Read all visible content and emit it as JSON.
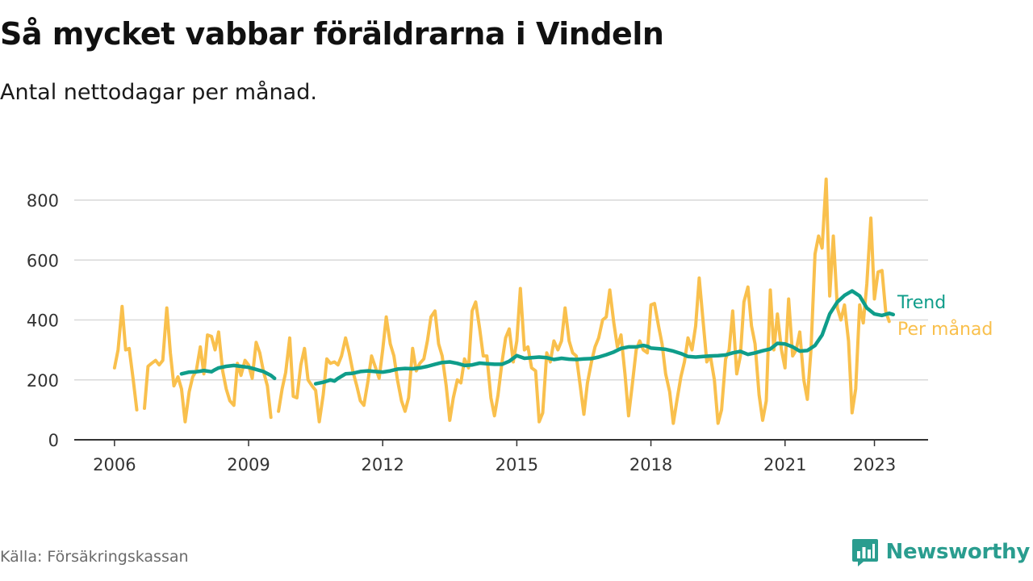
{
  "title": "Så mycket vabbar föräldrarna i Vindeln",
  "subtitle": "Antal nettodagar per månad.",
  "source": "Källa: Försäkringskassan",
  "brand": {
    "name": "Newsworthy",
    "icon": "bar-chart-icon",
    "color": "#2a9d8f"
  },
  "chart_data": {
    "type": "line",
    "xlim": [
      2005.1,
      2024.2
    ],
    "ylim": [
      0,
      850
    ],
    "x_ticks": [
      2006,
      2009,
      2012,
      2015,
      2018,
      2021,
      2023
    ],
    "y_ticks": [
      0,
      200,
      400,
      600,
      800
    ],
    "grid": true,
    "legend": "right",
    "series": [
      {
        "name": "Per månad",
        "color": "#f9c04d",
        "points": [
          [
            2006.0,
            240
          ],
          [
            2006.08,
            300
          ],
          [
            2006.17,
            445
          ],
          [
            2006.25,
            300
          ],
          [
            2006.33,
            305
          ],
          [
            2006.42,
            200
          ],
          [
            2006.5,
            100
          ],
          [
            2006.58,
            null
          ],
          [
            2006.67,
            105
          ],
          [
            2006.75,
            245
          ],
          [
            2006.83,
            255
          ],
          [
            2006.92,
            265
          ],
          [
            2007.0,
            250
          ],
          [
            2007.08,
            265
          ],
          [
            2007.17,
            440
          ],
          [
            2007.25,
            290
          ],
          [
            2007.33,
            180
          ],
          [
            2007.42,
            210
          ],
          [
            2007.5,
            170
          ],
          [
            2007.58,
            60
          ],
          [
            2007.67,
            160
          ],
          [
            2007.75,
            210
          ],
          [
            2007.83,
            230
          ],
          [
            2007.92,
            310
          ],
          [
            2008.0,
            220
          ],
          [
            2008.08,
            350
          ],
          [
            2008.17,
            345
          ],
          [
            2008.25,
            300
          ],
          [
            2008.33,
            360
          ],
          [
            2008.42,
            230
          ],
          [
            2008.5,
            170
          ],
          [
            2008.58,
            130
          ],
          [
            2008.67,
            115
          ],
          [
            2008.75,
            255
          ],
          [
            2008.83,
            215
          ],
          [
            2008.92,
            265
          ],
          [
            2009.0,
            250
          ],
          [
            2009.08,
            205
          ],
          [
            2009.17,
            325
          ],
          [
            2009.25,
            290
          ],
          [
            2009.33,
            230
          ],
          [
            2009.42,
            180
          ],
          [
            2009.5,
            75
          ],
          [
            2009.58,
            null
          ],
          [
            2009.67,
            95
          ],
          [
            2009.75,
            170
          ],
          [
            2009.83,
            225
          ],
          [
            2009.92,
            340
          ],
          [
            2010.0,
            145
          ],
          [
            2010.08,
            140
          ],
          [
            2010.17,
            250
          ],
          [
            2010.25,
            305
          ],
          [
            2010.33,
            200
          ],
          [
            2010.42,
            180
          ],
          [
            2010.5,
            165
          ],
          [
            2010.58,
            60
          ],
          [
            2010.67,
            150
          ],
          [
            2010.75,
            270
          ],
          [
            2010.83,
            255
          ],
          [
            2010.92,
            260
          ],
          [
            2011.0,
            250
          ],
          [
            2011.08,
            280
          ],
          [
            2011.17,
            340
          ],
          [
            2011.25,
            290
          ],
          [
            2011.33,
            230
          ],
          [
            2011.42,
            180
          ],
          [
            2011.5,
            130
          ],
          [
            2011.58,
            115
          ],
          [
            2011.67,
            195
          ],
          [
            2011.75,
            280
          ],
          [
            2011.83,
            245
          ],
          [
            2011.92,
            205
          ],
          [
            2012.0,
            300
          ],
          [
            2012.08,
            410
          ],
          [
            2012.17,
            320
          ],
          [
            2012.25,
            280
          ],
          [
            2012.33,
            200
          ],
          [
            2012.42,
            130
          ],
          [
            2012.5,
            95
          ],
          [
            2012.58,
            140
          ],
          [
            2012.67,
            305
          ],
          [
            2012.75,
            230
          ],
          [
            2012.83,
            255
          ],
          [
            2012.92,
            270
          ],
          [
            2013.0,
            330
          ],
          [
            2013.08,
            410
          ],
          [
            2013.17,
            430
          ],
          [
            2013.25,
            320
          ],
          [
            2013.33,
            280
          ],
          [
            2013.42,
            180
          ],
          [
            2013.5,
            65
          ],
          [
            2013.58,
            140
          ],
          [
            2013.67,
            200
          ],
          [
            2013.75,
            190
          ],
          [
            2013.83,
            270
          ],
          [
            2013.92,
            240
          ],
          [
            2014.0,
            430
          ],
          [
            2014.08,
            460
          ],
          [
            2014.17,
            370
          ],
          [
            2014.25,
            280
          ],
          [
            2014.33,
            280
          ],
          [
            2014.42,
            140
          ],
          [
            2014.5,
            80
          ],
          [
            2014.58,
            150
          ],
          [
            2014.67,
            260
          ],
          [
            2014.75,
            340
          ],
          [
            2014.83,
            370
          ],
          [
            2014.92,
            260
          ],
          [
            2015.0,
            330
          ],
          [
            2015.08,
            505
          ],
          [
            2015.17,
            300
          ],
          [
            2015.25,
            310
          ],
          [
            2015.33,
            240
          ],
          [
            2015.42,
            230
          ],
          [
            2015.5,
            60
          ],
          [
            2015.58,
            90
          ],
          [
            2015.67,
            290
          ],
          [
            2015.75,
            260
          ],
          [
            2015.83,
            330
          ],
          [
            2015.92,
            300
          ],
          [
            2016.0,
            330
          ],
          [
            2016.08,
            440
          ],
          [
            2016.17,
            330
          ],
          [
            2016.25,
            290
          ],
          [
            2016.33,
            280
          ],
          [
            2016.42,
            180
          ],
          [
            2016.5,
            85
          ],
          [
            2016.58,
            190
          ],
          [
            2016.67,
            260
          ],
          [
            2016.75,
            310
          ],
          [
            2016.83,
            340
          ],
          [
            2016.92,
            400
          ],
          [
            2017.0,
            410
          ],
          [
            2017.08,
            500
          ],
          [
            2017.17,
            390
          ],
          [
            2017.25,
            310
          ],
          [
            2017.33,
            350
          ],
          [
            2017.42,
            220
          ],
          [
            2017.5,
            80
          ],
          [
            2017.58,
            180
          ],
          [
            2017.67,
            300
          ],
          [
            2017.75,
            330
          ],
          [
            2017.83,
            300
          ],
          [
            2017.92,
            290
          ],
          [
            2018.0,
            450
          ],
          [
            2018.08,
            455
          ],
          [
            2018.17,
            380
          ],
          [
            2018.25,
            320
          ],
          [
            2018.33,
            220
          ],
          [
            2018.42,
            160
          ],
          [
            2018.5,
            55
          ],
          [
            2018.58,
            130
          ],
          [
            2018.67,
            210
          ],
          [
            2018.75,
            260
          ],
          [
            2018.83,
            340
          ],
          [
            2018.92,
            300
          ],
          [
            2019.0,
            380
          ],
          [
            2019.08,
            540
          ],
          [
            2019.17,
            390
          ],
          [
            2019.25,
            260
          ],
          [
            2019.33,
            280
          ],
          [
            2019.42,
            200
          ],
          [
            2019.5,
            55
          ],
          [
            2019.58,
            100
          ],
          [
            2019.67,
            270
          ],
          [
            2019.75,
            300
          ],
          [
            2019.83,
            430
          ],
          [
            2019.92,
            220
          ],
          [
            2020.0,
            280
          ],
          [
            2020.08,
            460
          ],
          [
            2020.17,
            510
          ],
          [
            2020.25,
            380
          ],
          [
            2020.33,
            320
          ],
          [
            2020.42,
            150
          ],
          [
            2020.5,
            65
          ],
          [
            2020.58,
            130
          ],
          [
            2020.67,
            500
          ],
          [
            2020.75,
            300
          ],
          [
            2020.83,
            420
          ],
          [
            2020.92,
            300
          ],
          [
            2021.0,
            240
          ],
          [
            2021.08,
            470
          ],
          [
            2021.17,
            280
          ],
          [
            2021.25,
            300
          ],
          [
            2021.33,
            360
          ],
          [
            2021.42,
            200
          ],
          [
            2021.5,
            135
          ],
          [
            2021.58,
            300
          ],
          [
            2021.67,
            620
          ],
          [
            2021.75,
            680
          ],
          [
            2021.83,
            640
          ],
          [
            2021.92,
            870
          ],
          [
            2022.0,
            480
          ],
          [
            2022.08,
            680
          ],
          [
            2022.17,
            440
          ],
          [
            2022.25,
            400
          ],
          [
            2022.33,
            450
          ],
          [
            2022.42,
            330
          ],
          [
            2022.5,
            90
          ],
          [
            2022.58,
            170
          ],
          [
            2022.67,
            450
          ],
          [
            2022.75,
            390
          ],
          [
            2022.83,
            520
          ],
          [
            2022.92,
            740
          ],
          [
            2023.0,
            470
          ],
          [
            2023.08,
            560
          ],
          [
            2023.17,
            565
          ],
          [
            2023.25,
            430
          ],
          [
            2023.33,
            395
          ]
        ]
      },
      {
        "name": "Trend",
        "color": "#0f9d8a",
        "points": [
          [
            2007.5,
            220
          ],
          [
            2007.67,
            226
          ],
          [
            2007.83,
            227
          ],
          [
            2007.92,
            229
          ],
          [
            2008.0,
            231
          ],
          [
            2008.17,
            227
          ],
          [
            2008.25,
            234
          ],
          [
            2008.33,
            240
          ],
          [
            2008.5,
            245
          ],
          [
            2008.67,
            248
          ],
          [
            2008.83,
            245
          ],
          [
            2009.0,
            242
          ],
          [
            2009.17,
            235
          ],
          [
            2009.33,
            228
          ],
          [
            2009.5,
            215
          ],
          [
            2009.58,
            205
          ],
          [
            2009.67,
            null
          ],
          [
            2010.5,
            187
          ],
          [
            2010.67,
            192
          ],
          [
            2010.83,
            200
          ],
          [
            2010.92,
            196
          ],
          [
            2011.0,
            205
          ],
          [
            2011.17,
            220
          ],
          [
            2011.33,
            222
          ],
          [
            2011.5,
            228
          ],
          [
            2011.67,
            230
          ],
          [
            2011.83,
            228
          ],
          [
            2012.0,
            226
          ],
          [
            2012.17,
            230
          ],
          [
            2012.33,
            236
          ],
          [
            2012.5,
            238
          ],
          [
            2012.67,
            237
          ],
          [
            2012.83,
            240
          ],
          [
            2013.0,
            245
          ],
          [
            2013.17,
            252
          ],
          [
            2013.33,
            258
          ],
          [
            2013.5,
            260
          ],
          [
            2013.67,
            255
          ],
          [
            2013.83,
            248
          ],
          [
            2014.0,
            250
          ],
          [
            2014.17,
            256
          ],
          [
            2014.33,
            254
          ],
          [
            2014.5,
            252
          ],
          [
            2014.67,
            252
          ],
          [
            2014.83,
            262
          ],
          [
            2015.0,
            281
          ],
          [
            2015.17,
            272
          ],
          [
            2015.33,
            274
          ],
          [
            2015.5,
            276
          ],
          [
            2015.67,
            274
          ],
          [
            2015.83,
            268
          ],
          [
            2016.0,
            272
          ],
          [
            2016.17,
            269
          ],
          [
            2016.33,
            268
          ],
          [
            2016.5,
            270
          ],
          [
            2016.67,
            271
          ],
          [
            2016.83,
            276
          ],
          [
            2017.0,
            284
          ],
          [
            2017.17,
            293
          ],
          [
            2017.33,
            305
          ],
          [
            2017.5,
            310
          ],
          [
            2017.67,
            310
          ],
          [
            2017.83,
            315
          ],
          [
            2017.92,
            312
          ],
          [
            2018.0,
            306
          ],
          [
            2018.17,
            304
          ],
          [
            2018.33,
            302
          ],
          [
            2018.5,
            296
          ],
          [
            2018.67,
            288
          ],
          [
            2018.83,
            278
          ],
          [
            2019.0,
            276
          ],
          [
            2019.17,
            278
          ],
          [
            2019.33,
            280
          ],
          [
            2019.5,
            281
          ],
          [
            2019.67,
            283
          ],
          [
            2019.83,
            290
          ],
          [
            2020.0,
            295
          ],
          [
            2020.17,
            285
          ],
          [
            2020.33,
            290
          ],
          [
            2020.5,
            297
          ],
          [
            2020.67,
            303
          ],
          [
            2020.83,
            322
          ],
          [
            2021.0,
            320
          ],
          [
            2021.17,
            310
          ],
          [
            2021.33,
            296
          ],
          [
            2021.5,
            298
          ],
          [
            2021.67,
            315
          ],
          [
            2021.83,
            350
          ],
          [
            2022.0,
            420
          ],
          [
            2022.17,
            460
          ],
          [
            2022.33,
            482
          ],
          [
            2022.5,
            497
          ],
          [
            2022.67,
            480
          ],
          [
            2022.83,
            440
          ],
          [
            2023.0,
            420
          ],
          [
            2023.17,
            415
          ],
          [
            2023.33,
            422
          ],
          [
            2023.42,
            418
          ]
        ]
      }
    ]
  }
}
